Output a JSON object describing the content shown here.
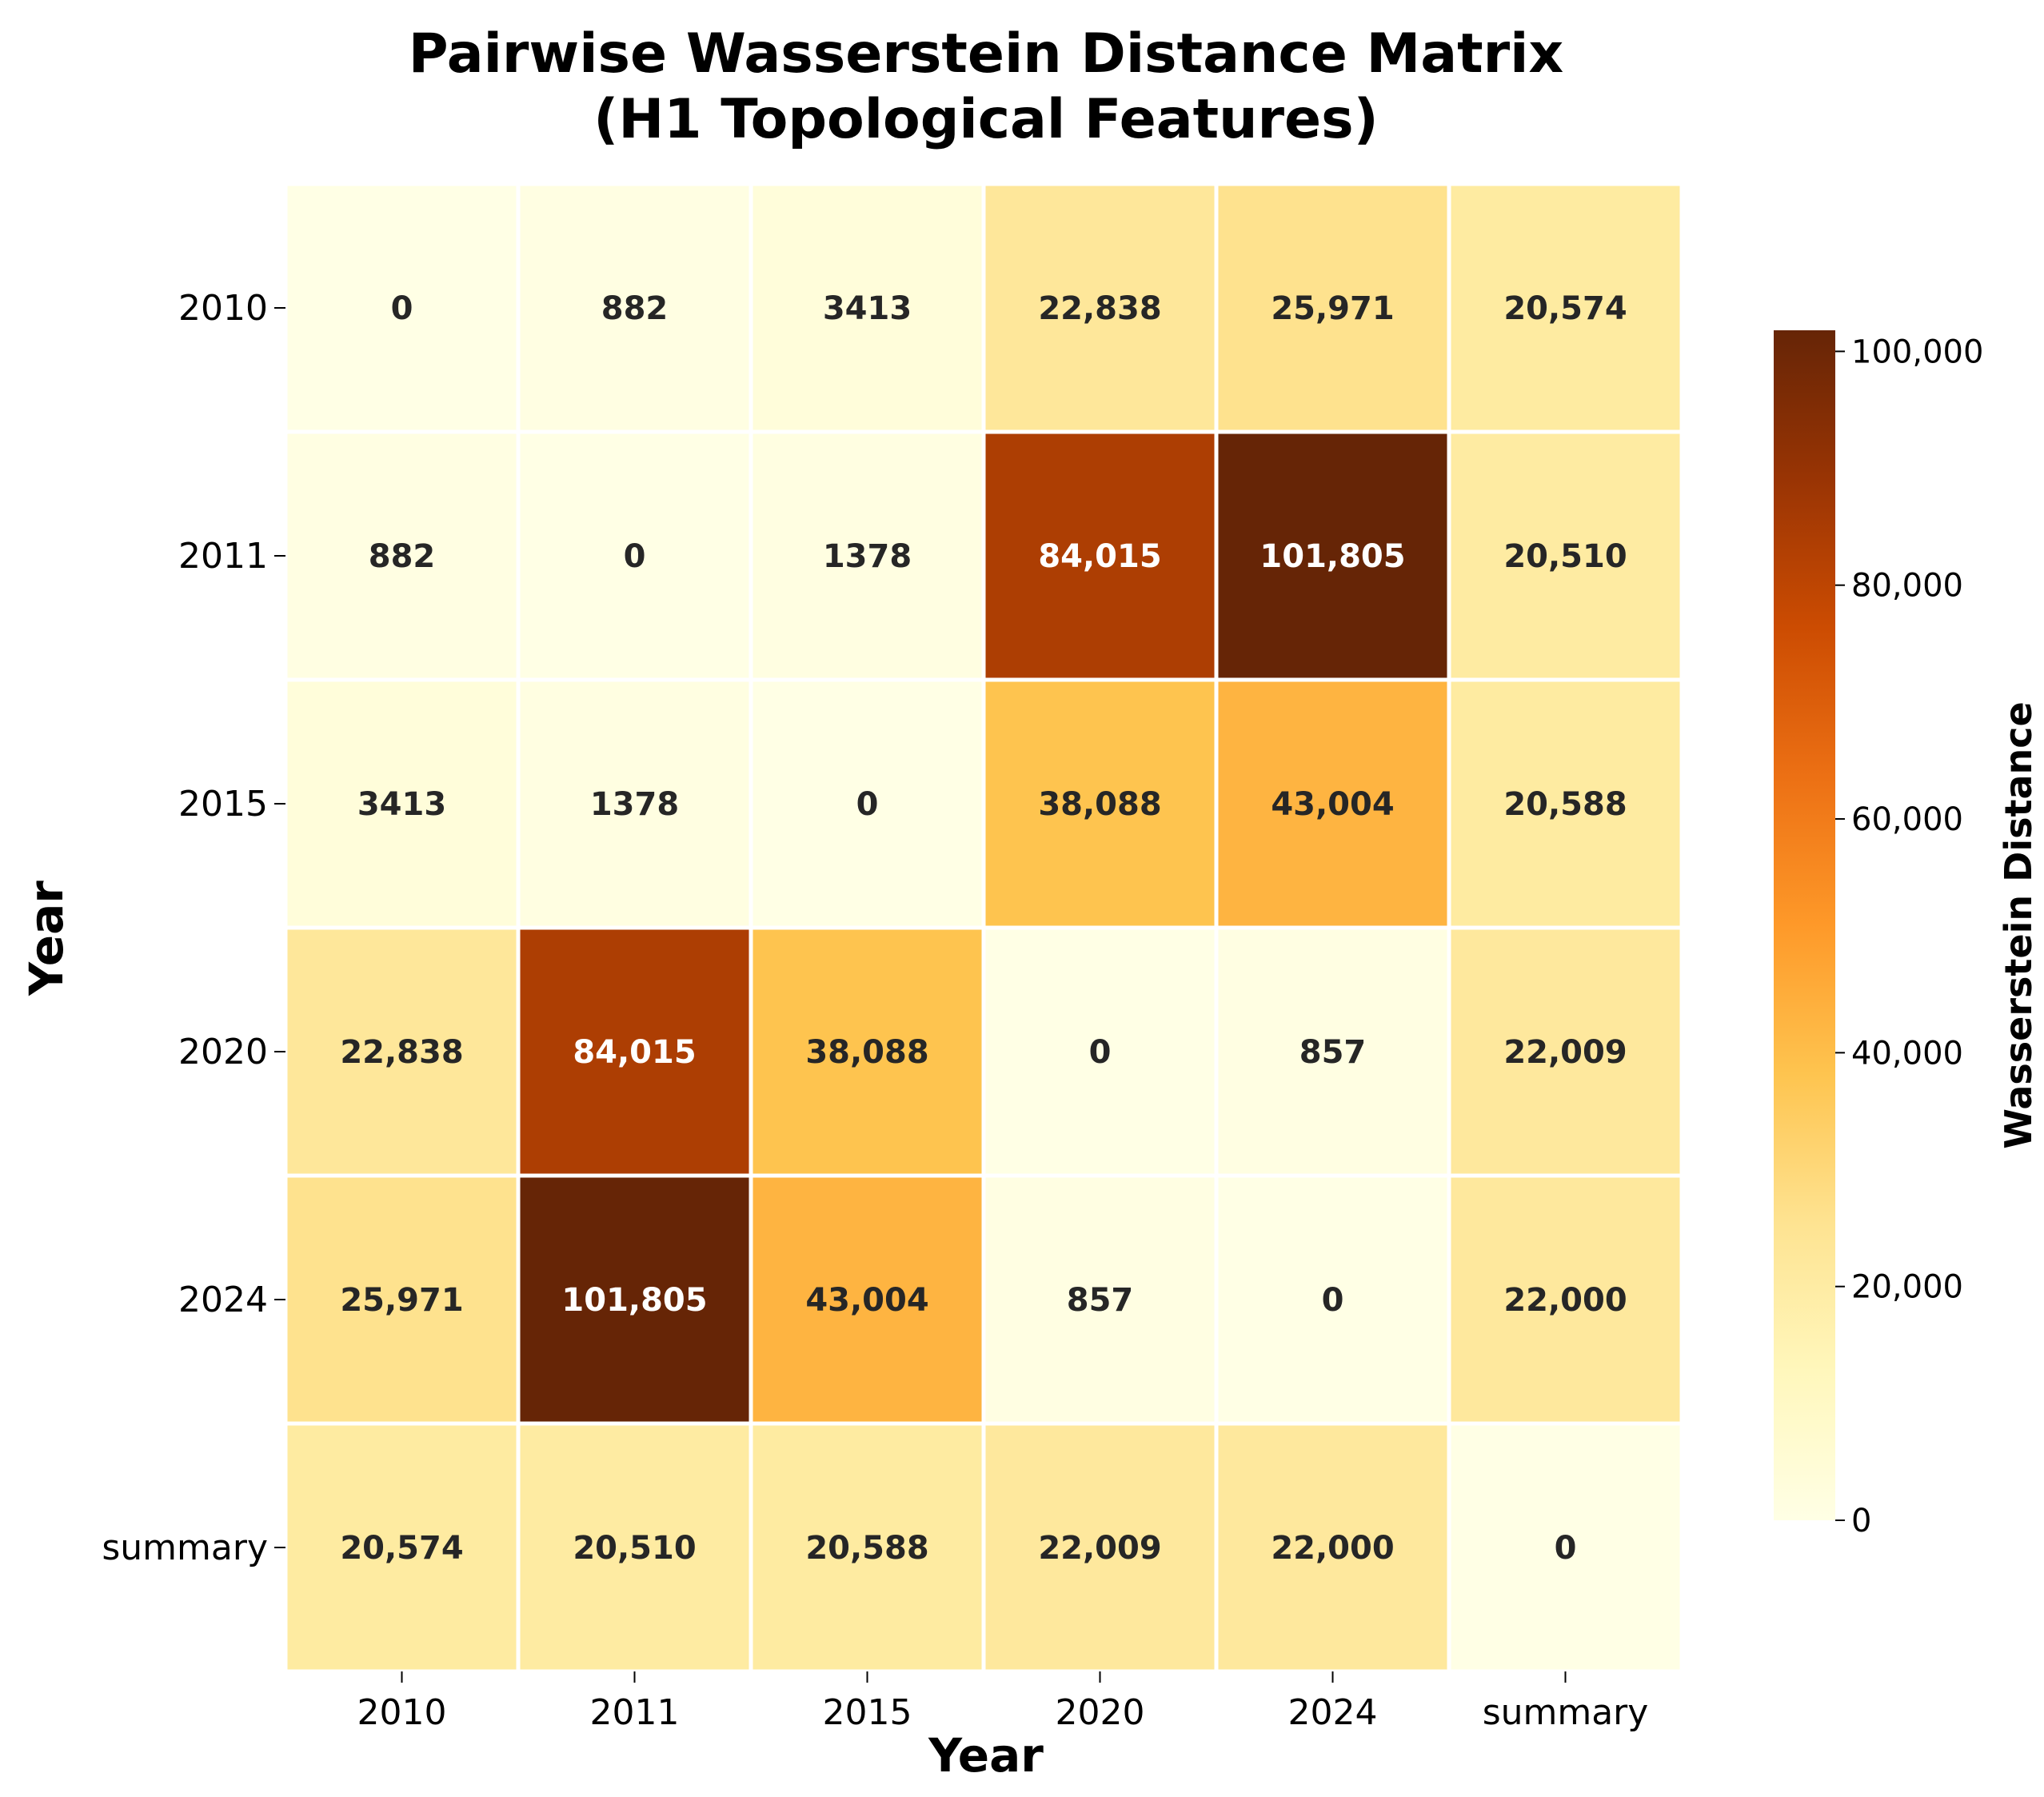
{
  "chart_data": {
    "type": "heatmap",
    "title_lines": [
      "Pairwise Wasserstein Distance Matrix",
      "(H1 Topological Features)"
    ],
    "xlabel": "Year",
    "ylabel": "Year",
    "x_categories": [
      "2010",
      "2011",
      "2015",
      "2020",
      "2024",
      "summary"
    ],
    "y_categories": [
      "2010",
      "2011",
      "2015",
      "2020",
      "2024",
      "summary"
    ],
    "values": [
      [
        0,
        882,
        3413,
        22838,
        25971,
        20574
      ],
      [
        882,
        0,
        1378,
        84015,
        101805,
        20510
      ],
      [
        3413,
        1378,
        0,
        38088,
        43004,
        20588
      ],
      [
        22838,
        84015,
        38088,
        0,
        857,
        22009
      ],
      [
        25971,
        101805,
        43004,
        857,
        0,
        22000
      ],
      [
        20574,
        20510,
        20588,
        22009,
        22000,
        0
      ]
    ],
    "cell_labels": [
      [
        "0",
        "882",
        "3413",
        "22,838",
        "25,971",
        "20,574"
      ],
      [
        "882",
        "0",
        "1378",
        "84,015",
        "101,805",
        "20,510"
      ],
      [
        "3413",
        "1378",
        "0",
        "38,088",
        "43,004",
        "20,588"
      ],
      [
        "22,838",
        "84,015",
        "38,088",
        "0",
        "857",
        "22,009"
      ],
      [
        "25,971",
        "101,805",
        "43,004",
        "857",
        "0",
        "22,000"
      ],
      [
        "20,574",
        "20,510",
        "20,588",
        "22,009",
        "22,000",
        "0"
      ]
    ],
    "colormap": "YlOrBr",
    "colorbar": {
      "label": "Wasserstein Distance",
      "range": [
        0,
        101805
      ],
      "ticks": [
        0,
        20000,
        40000,
        60000,
        80000,
        100000
      ],
      "tick_labels": [
        "0",
        "20,000",
        "40,000",
        "60,000",
        "80,000",
        "100,000"
      ],
      "placement": "right"
    },
    "grid": false
  }
}
